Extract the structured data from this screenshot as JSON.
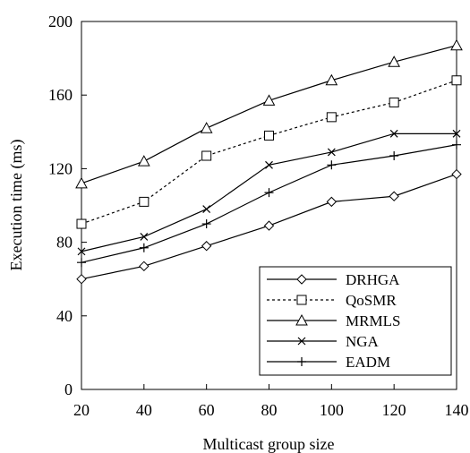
{
  "chart_data": {
    "type": "line",
    "title": "",
    "xlabel": "Multicast group size",
    "ylabel": "Execution time (ms)",
    "x": [
      20,
      40,
      60,
      80,
      100,
      120,
      140
    ],
    "xlim": [
      20,
      140
    ],
    "ylim": [
      0,
      200
    ],
    "xticks": [
      "20",
      "40",
      "60",
      "80",
      "100",
      "120",
      "140"
    ],
    "yticks": [
      "0",
      "40",
      "80",
      "120",
      "160",
      "200"
    ],
    "grid": false,
    "legend_position": "bottom-right",
    "series": [
      {
        "name": "DRHGA",
        "marker": "diamond",
        "dash": "solid",
        "values": [
          60,
          67,
          78,
          89,
          102,
          105,
          117
        ]
      },
      {
        "name": "QoSMR",
        "marker": "square",
        "dash": "dotted",
        "values": [
          90,
          102,
          127,
          138,
          148,
          156,
          168
        ]
      },
      {
        "name": "MRMLS",
        "marker": "triangle",
        "dash": "solid",
        "values": [
          112,
          124,
          142,
          157,
          168,
          178,
          187
        ]
      },
      {
        "name": "NGA",
        "marker": "x",
        "dash": "solid",
        "values": [
          75,
          83,
          98,
          122,
          129,
          139,
          139
        ]
      },
      {
        "name": "EADM",
        "marker": "plus",
        "dash": "solid",
        "values": [
          69,
          77,
          90,
          107,
          122,
          127,
          133
        ]
      }
    ]
  }
}
